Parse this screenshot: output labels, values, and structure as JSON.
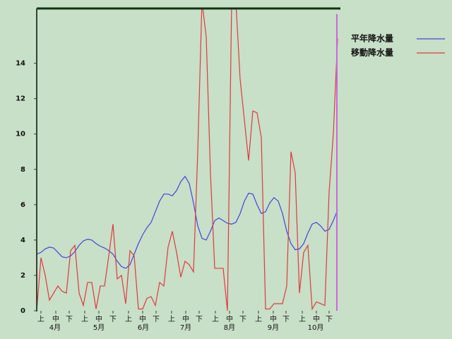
{
  "chart_data": {
    "type": "line",
    "series": [
      {
        "name": "平年降水量",
        "color": "#4444dd",
        "values": [
          3.2,
          3.3,
          3.5,
          3.6,
          3.55,
          3.3,
          3.05,
          3.0,
          3.1,
          3.35,
          3.7,
          3.95,
          4.05,
          4.0,
          3.8,
          3.65,
          3.55,
          3.4,
          3.2,
          2.8,
          2.5,
          2.4,
          2.6,
          3.2,
          3.8,
          4.3,
          4.7,
          5.0,
          5.6,
          6.2,
          6.6,
          6.6,
          6.5,
          6.8,
          7.3,
          7.6,
          7.2,
          6.1,
          4.8,
          4.1,
          4.0,
          4.5,
          5.1,
          5.25,
          5.1,
          4.95,
          4.9,
          5.0,
          5.5,
          6.2,
          6.65,
          6.6,
          6.0,
          5.5,
          5.6,
          6.1,
          6.4,
          6.2,
          5.5,
          4.5,
          3.8,
          3.45,
          3.5,
          3.8,
          4.4,
          4.9,
          5.0,
          4.8,
          4.5,
          4.6,
          5.1,
          5.7
        ]
      },
      {
        "name": "移動降水量",
        "color": "#e03a3a",
        "values": [
          0,
          3.0,
          2.0,
          0.6,
          1.0,
          1.4,
          1.1,
          1.0,
          3.4,
          3.7,
          1.0,
          0.3,
          1.6,
          1.6,
          0.1,
          1.4,
          1.4,
          3.1,
          4.9,
          1.8,
          2.0,
          0.4,
          3.4,
          3.1,
          0.1,
          0.1,
          0.7,
          0.8,
          0.3,
          1.6,
          1.4,
          3.6,
          4.5,
          3.3,
          1.9,
          2.8,
          2.6,
          2.2,
          9.0,
          17.5,
          15.5,
          7.8,
          2.4,
          2.4,
          2.4,
          0,
          17.5,
          17.5,
          13.1,
          10.8,
          8.5,
          11.3,
          11.2,
          9.8,
          0.1,
          0.1,
          0.4,
          0.4,
          0.4,
          1.4,
          9.0,
          7.8,
          1.0,
          3.3,
          3.7,
          0.1,
          0.5,
          0.4,
          0.3,
          6.7,
          10.0,
          15.4
        ]
      }
    ],
    "xlim": [
      0,
      71.67
    ],
    "xticks": [
      {
        "value": 1,
        "label": "上"
      },
      {
        "value": 4.5,
        "label": "中"
      },
      {
        "value": 7.67,
        "label": "下"
      },
      {
        "value": 11.33,
        "label": "上"
      },
      {
        "value": 14.67,
        "label": "中"
      },
      {
        "value": 18,
        "label": "下"
      },
      {
        "value": 21.67,
        "label": "上"
      },
      {
        "value": 25,
        "label": "中"
      },
      {
        "value": 28.17,
        "label": "下"
      },
      {
        "value": 31.83,
        "label": "上"
      },
      {
        "value": 35.17,
        "label": "中"
      },
      {
        "value": 38.33,
        "label": "下"
      },
      {
        "value": 42.17,
        "label": "上"
      },
      {
        "value": 45.5,
        "label": "中"
      },
      {
        "value": 48.67,
        "label": "下"
      },
      {
        "value": 52.33,
        "label": "上"
      },
      {
        "value": 55.83,
        "label": "中"
      },
      {
        "value": 58.83,
        "label": "下"
      },
      {
        "value": 62.67,
        "label": "上"
      },
      {
        "value": 66,
        "label": "中"
      },
      {
        "value": 69,
        "label": "下"
      }
    ],
    "month_labels": [
      {
        "value": 4.33,
        "label": "4月"
      },
      {
        "value": 14.67,
        "label": "5月"
      },
      {
        "value": 25.17,
        "label": "6月"
      },
      {
        "value": 35.17,
        "label": "7月"
      },
      {
        "value": 45.5,
        "label": "8月"
      },
      {
        "value": 55.83,
        "label": "9月"
      },
      {
        "value": 65.83,
        "label": "10月"
      }
    ],
    "ylim": [
      0,
      17.1
    ],
    "yticks": [
      0,
      2,
      4,
      6,
      8,
      10,
      12,
      14
    ],
    "legend": "right"
  }
}
